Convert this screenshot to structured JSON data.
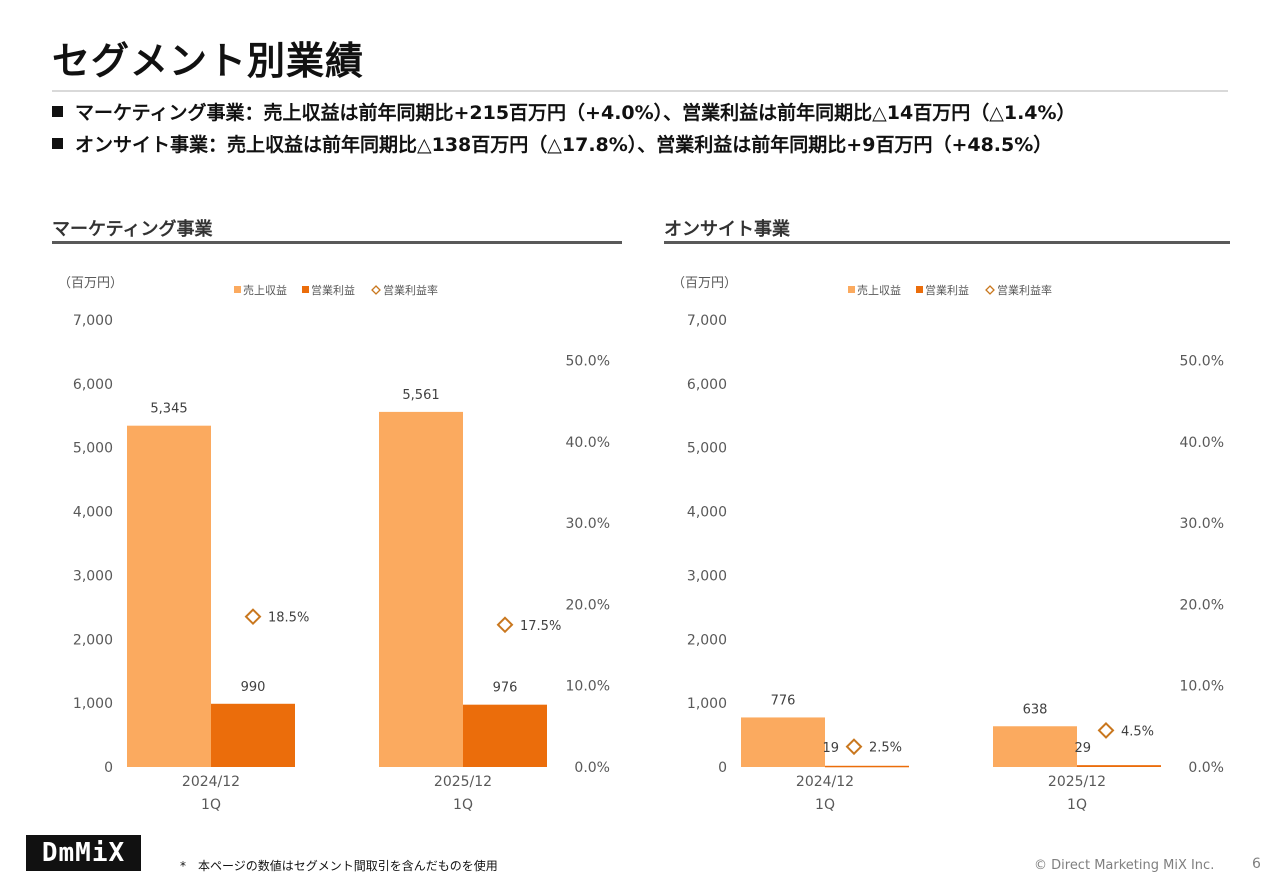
{
  "page": {
    "title": "セグメント別業績",
    "bullets": [
      "マーケティング事業：売上収益は前年同期比+215百万円（+4.0%）、営業利益は前年同期比△14百万円（△1.4%）",
      "オンサイト事業：売上収益は前年同期比△138百万円（△17.8%）、営業利益は前年同期比+9百万円（+48.5%）"
    ],
    "footnote": "*　本ページの数値はセグメント間取引を含んだものを使用",
    "copyright": "© Direct Marketing MiX Inc.",
    "page_number": "6",
    "logo_text": "DmMiX",
    "colors": {
      "revenue": "#FBAA5F",
      "operating_profit": "#EB6D0B",
      "margin": "#C9771E"
    }
  },
  "sections": [
    {
      "title": "マーケティング事業"
    },
    {
      "title": "オンサイト事業"
    }
  ],
  "chart_data": [
    {
      "type": "bar",
      "title": "マーケティング事業",
      "unit_label": "（百万円）",
      "categories": [
        [
          "2024/12",
          "1Q"
        ],
        [
          "2025/12",
          "1Q"
        ]
      ],
      "series": [
        {
          "name": "売上収益",
          "type": "bar",
          "axis": "left",
          "values": [
            5345,
            5561
          ],
          "labels": [
            "5,345",
            "5,561"
          ]
        },
        {
          "name": "営業利益",
          "type": "bar",
          "axis": "left",
          "values": [
            990,
            976
          ],
          "labels": [
            "990",
            "976"
          ]
        },
        {
          "name": "営業利益率",
          "type": "scatter",
          "marker": "diamond",
          "axis": "right",
          "values": [
            18.5,
            17.5
          ],
          "labels": [
            "18.5%",
            "17.5%"
          ]
        }
      ],
      "ylim": [
        0,
        7000
      ],
      "yticks": [
        0,
        1000,
        2000,
        3000,
        4000,
        5000,
        6000,
        7000
      ],
      "ytick_labels": [
        "0",
        "1,000",
        "2,000",
        "3,000",
        "4,000",
        "5,000",
        "6,000",
        "7,000"
      ],
      "y2lim": [
        0,
        55
      ],
      "y2ticks": [
        0,
        10,
        20,
        30,
        40,
        50
      ],
      "y2tick_labels": [
        "0.0%",
        "10.0%",
        "20.0%",
        "30.0%",
        "40.0%",
        "50.0%"
      ],
      "legend": "top",
      "grid": false
    },
    {
      "type": "bar",
      "title": "オンサイト事業",
      "unit_label": "（百万円）",
      "categories": [
        [
          "2024/12",
          "1Q"
        ],
        [
          "2025/12",
          "1Q"
        ]
      ],
      "series": [
        {
          "name": "売上収益",
          "type": "bar",
          "axis": "left",
          "values": [
            776,
            638
          ],
          "labels": [
            "776",
            "638"
          ]
        },
        {
          "name": "営業利益",
          "type": "bar",
          "axis": "left",
          "values": [
            19,
            29
          ],
          "labels": [
            "19",
            "29"
          ]
        },
        {
          "name": "営業利益率",
          "type": "scatter",
          "marker": "diamond",
          "axis": "right",
          "values": [
            2.5,
            4.5
          ],
          "labels": [
            "2.5%",
            "4.5%"
          ]
        }
      ],
      "ylim": [
        0,
        7000
      ],
      "yticks": [
        0,
        1000,
        2000,
        3000,
        4000,
        5000,
        6000,
        7000
      ],
      "ytick_labels": [
        "0",
        "1,000",
        "2,000",
        "3,000",
        "4,000",
        "5,000",
        "6,000",
        "7,000"
      ],
      "y2lim": [
        0,
        55
      ],
      "y2ticks": [
        0,
        10,
        20,
        30,
        40,
        50
      ],
      "y2tick_labels": [
        "0.0%",
        "10.0%",
        "20.0%",
        "30.0%",
        "40.0%",
        "50.0%"
      ],
      "legend": "top",
      "grid": false
    }
  ]
}
